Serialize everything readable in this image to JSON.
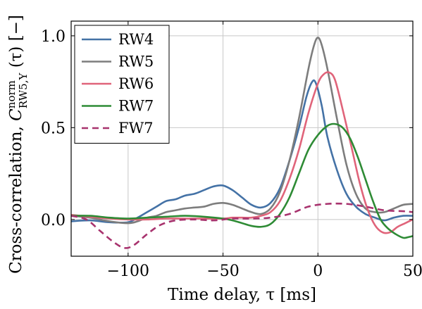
{
  "chart_data": {
    "type": "line",
    "xlabel": "Time delay, τ [ms]",
    "ylabel": "Cross-correlation, C^norm_RW5,Y (τ) [−]",
    "ylabel_parts": {
      "prefix": "Cross-correlation, ",
      "symbol": "C",
      "superscript": "norm",
      "subscript": "RW5,Y",
      "suffix": " (τ) [−]"
    },
    "xlim": [
      -130,
      50
    ],
    "ylim": [
      -0.2,
      1.08
    ],
    "x_ticks": [
      -100,
      -50,
      0,
      50
    ],
    "x_tick_labels": [
      "−100",
      "−50",
      "0",
      "50"
    ],
    "y_ticks": [
      0,
      0.5,
      1
    ],
    "y_tick_labels": [
      "0.0",
      "0.5",
      "1.0"
    ],
    "grid": true,
    "legend_position": "top-left",
    "series": [
      {
        "name": "RW4",
        "color": "#4472a6",
        "dash": "solid",
        "points": [
          [
            -130,
            -0.01
          ],
          [
            -120,
            -0.005
          ],
          [
            -110,
            -0.015
          ],
          [
            -100,
            -0.015
          ],
          [
            -95,
            0.01
          ],
          [
            -90,
            0.04
          ],
          [
            -85,
            0.07
          ],
          [
            -80,
            0.1
          ],
          [
            -75,
            0.11
          ],
          [
            -70,
            0.13
          ],
          [
            -65,
            0.14
          ],
          [
            -60,
            0.16
          ],
          [
            -55,
            0.18
          ],
          [
            -50,
            0.185
          ],
          [
            -45,
            0.16
          ],
          [
            -40,
            0.12
          ],
          [
            -35,
            0.08
          ],
          [
            -30,
            0.065
          ],
          [
            -25,
            0.09
          ],
          [
            -20,
            0.17
          ],
          [
            -15,
            0.32
          ],
          [
            -10,
            0.5
          ],
          [
            -6,
            0.67
          ],
          [
            -3,
            0.75
          ],
          [
            -1,
            0.74
          ],
          [
            2,
            0.62
          ],
          [
            5,
            0.45
          ],
          [
            10,
            0.27
          ],
          [
            15,
            0.14
          ],
          [
            20,
            0.07
          ],
          [
            25,
            0.03
          ],
          [
            30,
            0.01
          ],
          [
            35,
            -0.005
          ],
          [
            40,
            0.01
          ],
          [
            45,
            0.02
          ],
          [
            50,
            0.02
          ]
        ]
      },
      {
        "name": "RW5",
        "color": "#7d7d7d",
        "dash": "solid",
        "points": [
          [
            -130,
            0.02
          ],
          [
            -120,
            0.01
          ],
          [
            -110,
            -0.01
          ],
          [
            -100,
            -0.02
          ],
          [
            -95,
            -0.01
          ],
          [
            -90,
            0.01
          ],
          [
            -85,
            0.02
          ],
          [
            -80,
            0.04
          ],
          [
            -75,
            0.05
          ],
          [
            -70,
            0.06
          ],
          [
            -65,
            0.065
          ],
          [
            -60,
            0.07
          ],
          [
            -55,
            0.085
          ],
          [
            -50,
            0.09
          ],
          [
            -45,
            0.08
          ],
          [
            -40,
            0.06
          ],
          [
            -35,
            0.04
          ],
          [
            -30,
            0.03
          ],
          [
            -25,
            0.06
          ],
          [
            -20,
            0.15
          ],
          [
            -15,
            0.32
          ],
          [
            -10,
            0.55
          ],
          [
            -5,
            0.82
          ],
          [
            -2,
            0.95
          ],
          [
            0,
            0.99
          ],
          [
            2,
            0.95
          ],
          [
            5,
            0.82
          ],
          [
            10,
            0.55
          ],
          [
            15,
            0.3
          ],
          [
            20,
            0.14
          ],
          [
            25,
            0.06
          ],
          [
            30,
            0.04
          ],
          [
            35,
            0.04
          ],
          [
            40,
            0.06
          ],
          [
            45,
            0.08
          ],
          [
            50,
            0.085
          ]
        ]
      },
      {
        "name": "RW6",
        "color": "#e0647a",
        "dash": "solid",
        "points": [
          [
            -130,
            0.025
          ],
          [
            -120,
            0.015
          ],
          [
            -110,
            0.005
          ],
          [
            -100,
            0.0
          ],
          [
            -90,
            0.0
          ],
          [
            -80,
            0.005
          ],
          [
            -70,
            0.005
          ],
          [
            -60,
            0.005
          ],
          [
            -50,
            0.005
          ],
          [
            -45,
            0.01
          ],
          [
            -40,
            0.01
          ],
          [
            -35,
            0.01
          ],
          [
            -30,
            0.02
          ],
          [
            -25,
            0.04
          ],
          [
            -20,
            0.1
          ],
          [
            -15,
            0.22
          ],
          [
            -10,
            0.38
          ],
          [
            -5,
            0.58
          ],
          [
            0,
            0.74
          ],
          [
            3,
            0.79
          ],
          [
            6,
            0.8
          ],
          [
            9,
            0.76
          ],
          [
            13,
            0.6
          ],
          [
            18,
            0.38
          ],
          [
            22,
            0.2
          ],
          [
            26,
            0.06
          ],
          [
            30,
            -0.03
          ],
          [
            34,
            -0.07
          ],
          [
            38,
            -0.07
          ],
          [
            42,
            -0.04
          ],
          [
            46,
            -0.02
          ],
          [
            50,
            0.0
          ]
        ]
      },
      {
        "name": "RW7",
        "color": "#2e8b35",
        "dash": "solid",
        "points": [
          [
            -130,
            0.02
          ],
          [
            -120,
            0.02
          ],
          [
            -110,
            0.01
          ],
          [
            -100,
            0.005
          ],
          [
            -90,
            0.01
          ],
          [
            -80,
            0.015
          ],
          [
            -70,
            0.02
          ],
          [
            -60,
            0.015
          ],
          [
            -50,
            0.005
          ],
          [
            -45,
            -0.005
          ],
          [
            -40,
            -0.02
          ],
          [
            -35,
            -0.035
          ],
          [
            -30,
            -0.04
          ],
          [
            -25,
            -0.025
          ],
          [
            -20,
            0.03
          ],
          [
            -15,
            0.12
          ],
          [
            -10,
            0.25
          ],
          [
            -5,
            0.38
          ],
          [
            0,
            0.46
          ],
          [
            5,
            0.51
          ],
          [
            9,
            0.52
          ],
          [
            13,
            0.5
          ],
          [
            17,
            0.44
          ],
          [
            21,
            0.34
          ],
          [
            25,
            0.22
          ],
          [
            29,
            0.1
          ],
          [
            33,
            0.0
          ],
          [
            37,
            -0.05
          ],
          [
            41,
            -0.08
          ],
          [
            45,
            -0.1
          ],
          [
            48,
            -0.095
          ],
          [
            50,
            -0.09
          ]
        ]
      },
      {
        "name": "FW7",
        "color": "#a8336e",
        "dash": "dashed",
        "points": [
          [
            -130,
            0.02
          ],
          [
            -122,
            0.0
          ],
          [
            -115,
            -0.06
          ],
          [
            -108,
            -0.12
          ],
          [
            -102,
            -0.155
          ],
          [
            -97,
            -0.14
          ],
          [
            -90,
            -0.08
          ],
          [
            -83,
            -0.03
          ],
          [
            -75,
            -0.005
          ],
          [
            -65,
            0.0
          ],
          [
            -55,
            -0.005
          ],
          [
            -45,
            0.005
          ],
          [
            -35,
            0.005
          ],
          [
            -25,
            0.01
          ],
          [
            -15,
            0.03
          ],
          [
            -5,
            0.07
          ],
          [
            5,
            0.085
          ],
          [
            15,
            0.085
          ],
          [
            25,
            0.07
          ],
          [
            35,
            0.05
          ],
          [
            45,
            0.045
          ],
          [
            50,
            0.04
          ]
        ]
      }
    ]
  }
}
